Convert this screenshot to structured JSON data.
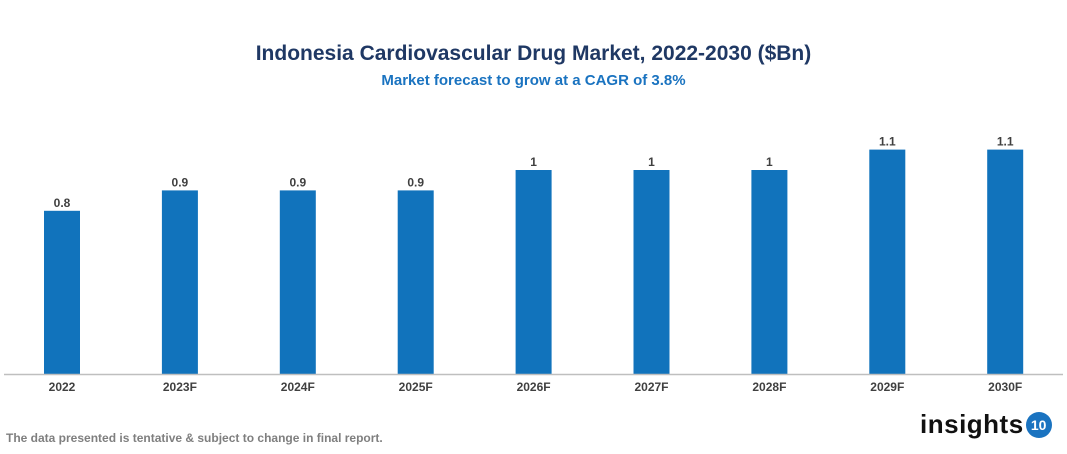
{
  "chart_data": {
    "type": "bar",
    "title": "Indonesia Cardiovascular Drug Market, 2022-2030 ($Bn)",
    "subtitle": "Market forecast to grow at a CAGR of 3.8%",
    "categories": [
      "2022",
      "2023F",
      "2024F",
      "2025F",
      "2026F",
      "2027F",
      "2028F",
      "2029F",
      "2030F"
    ],
    "values": [
      0.8,
      0.9,
      0.9,
      0.9,
      1,
      1,
      1,
      1.1,
      1.1
    ],
    "xlabel": "",
    "ylabel": "",
    "ylim": [
      0,
      1.3
    ],
    "grid": false,
    "bar_color": "#1173bc"
  },
  "footnote": "The data presented is tentative & subject to change in final report.",
  "logo": {
    "text": "insights",
    "badge": "10"
  }
}
